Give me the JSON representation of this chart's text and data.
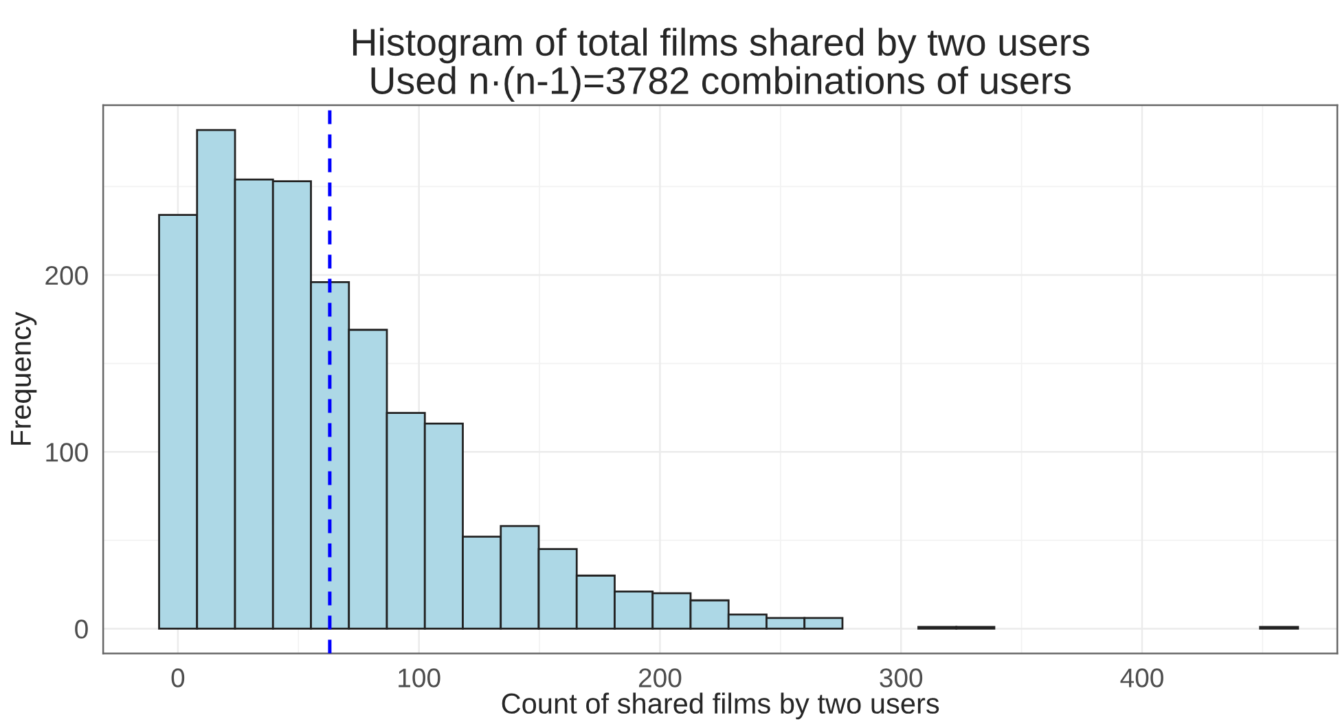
{
  "chart_data": {
    "type": "histogram",
    "title": "Histogram of total films shared by two users\nUsed n·(n-1)=3782 combinations of users",
    "xlabel": "Count of shared films by two users",
    "ylabel": "Frequency",
    "bins": [
      -7.8,
      7.95,
      23.7,
      39.45,
      55.2,
      70.95,
      86.7,
      102.45,
      118.2,
      133.95,
      149.7,
      165.45,
      181.2,
      196.95,
      212.7,
      228.45,
      244.2,
      259.95,
      275.7,
      291.45,
      307.2,
      322.95,
      338.7,
      354.45,
      370.2,
      385.95,
      401.7,
      417.45,
      433.2,
      448.95,
      464.7
    ],
    "values": [
      234,
      282,
      254,
      253,
      196,
      169,
      122,
      116,
      52,
      58,
      45,
      30,
      21,
      20,
      16,
      8,
      6,
      6,
      0,
      0,
      1,
      1,
      0,
      0,
      0,
      0,
      0,
      0,
      0,
      1
    ],
    "color": "#add8e6",
    "xlim": [
      -31,
      481
    ],
    "ylim": [
      -14,
      296
    ],
    "xticks": [
      0,
      100,
      200,
      300,
      400
    ],
    "yticks": [
      0,
      100,
      200
    ],
    "grid": true,
    "ref_lines": [
      {
        "axis": "x",
        "value": 63,
        "color": "#0000ff",
        "line_style": "dashed"
      }
    ]
  }
}
